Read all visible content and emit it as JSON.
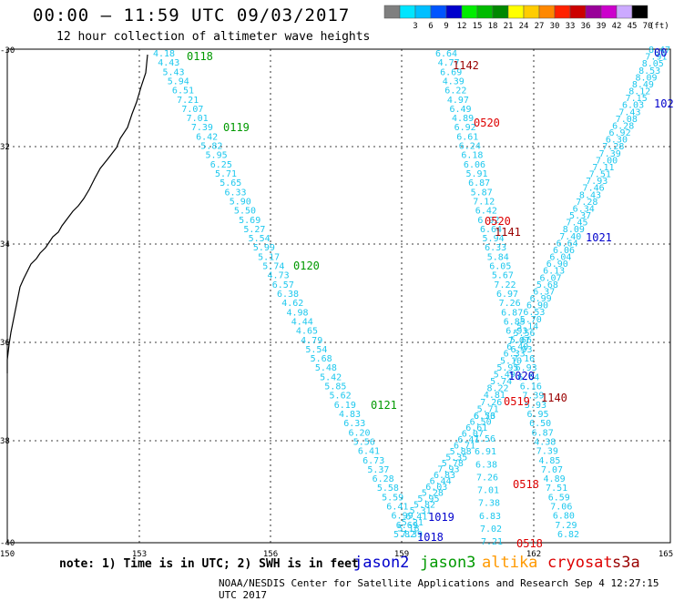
{
  "header": {
    "title": "00:00 – 11:59 UTC 09/03/2017",
    "subtitle": "12 hour collection of altimeter wave heights"
  },
  "legend": {
    "unit": "(ft)",
    "steps": [
      {
        "label": "",
        "color": "#7f7f7f"
      },
      {
        "label": "3",
        "color": "#00e5ff"
      },
      {
        "label": "6",
        "color": "#00bfff"
      },
      {
        "label": "9",
        "color": "#0055ff"
      },
      {
        "label": "12",
        "color": "#0000cc"
      },
      {
        "label": "15",
        "color": "#00ee00"
      },
      {
        "label": "18",
        "color": "#00bb00"
      },
      {
        "label": "21",
        "color": "#008800"
      },
      {
        "label": "24",
        "color": "#ffff00"
      },
      {
        "label": "27",
        "color": "#ffcc00"
      },
      {
        "label": "30",
        "color": "#ff8800"
      },
      {
        "label": "33",
        "color": "#ff2200"
      },
      {
        "label": "36",
        "color": "#cc0000"
      },
      {
        "label": "39",
        "color": "#990099"
      },
      {
        "label": "42",
        "color": "#cc00cc"
      },
      {
        "label": "45",
        "color": "#ccaaff"
      },
      {
        "label": "70",
        "color": "#000000"
      }
    ]
  },
  "axes": {
    "lat_labels": [
      "-30",
      "32",
      "34",
      "36",
      "38",
      "-40"
    ],
    "lon_labels": [
      "150",
      "153",
      "156",
      "159",
      "162",
      "165"
    ]
  },
  "tracks": [
    {
      "id": "0118",
      "sat": "jason3",
      "color": "#009900",
      "values": [
        "4.18",
        "4.43",
        "5.43",
        "5.94",
        "6.51",
        "7.21",
        "7.07",
        "7.01",
        "7.39",
        "6.42",
        "5.82",
        "5.95",
        "6.25",
        "5.71",
        "5.65",
        "6.33",
        "5.90",
        "5.50",
        "5.69",
        "5.27",
        "5.54",
        "5.99",
        "5.17",
        "5.74",
        "4.73",
        "6.57",
        "6.38",
        "4.62",
        "4.98",
        "4.44",
        "4.65",
        "4.79",
        "5.54",
        "5.68",
        "5.48",
        "5.42",
        "5.85",
        "5.62",
        "6.19",
        "4.83",
        "6.33",
        "6.20",
        "5.56",
        "6.41",
        "6.73",
        "5.37",
        "6.28",
        "5.58",
        "5.59",
        "6.41",
        "6.99",
        "6.69",
        "7.39"
      ]
    },
    {
      "id": "1142",
      "sat": "s3a",
      "color": "#990000",
      "values": [
        "6.64",
        "4.77",
        "6.69",
        "4.39",
        "6.22",
        "4.97",
        "6.49",
        "4.89",
        "6.92",
        "6.61",
        "6.24",
        "6.18",
        "6.06",
        "5.91",
        "6.87",
        "5.87",
        "7.12",
        "6.42",
        "6.92",
        "6.64",
        "5.94",
        "6.33",
        "5.84",
        "6.05",
        "5.67",
        "7.22",
        "6.97",
        "7.26",
        "6.87",
        "6.85",
        "6.93",
        "7.07",
        "6.93",
        "7.16",
        "6.93",
        "6.64",
        "6.16",
        "7.39",
        "5.93",
        "6.95",
        "6.50",
        "6.87",
        "4.38",
        "7.39",
        "4.85",
        "7.07",
        "4.89",
        "7.51",
        "6.59",
        "7.06",
        "6.80",
        "7.29",
        "6.82"
      ]
    },
    {
      "id": "1021",
      "sat": "jason2",
      "color": "#0000cc",
      "values": [
        "8.47",
        "7.91",
        "8.05",
        "8.53",
        "8.09",
        "8.49",
        "8.12",
        "7.15",
        "6.03",
        "7.43",
        "7.08",
        "6.28",
        "6.92",
        "6.30",
        "7.28",
        "7.39",
        "7.00",
        "7.11",
        "7.51",
        "7.93",
        "7.46",
        "8.43",
        "7.28",
        "6.34",
        "5.37",
        "7.45",
        "8.09",
        "7.40",
        "6.64",
        "6.06",
        "6.04",
        "6.90",
        "6.13",
        "6.07",
        "5.68",
        "6.37",
        "6.99",
        "6.90",
        "6.53",
        "5.70",
        "5.14",
        "5.56",
        "5.66",
        "6.40",
        "6.33",
        "5.10",
        "5.95",
        "5.49",
        "5.74",
        "8.22",
        "4.81",
        "7.26",
        "5.71",
        "6.76"
      ]
    },
    {
      "id": "1019",
      "sat": "jason2",
      "color": "#0000cc",
      "values": [
        "6.53",
        "6.50",
        "6.61",
        "6.07",
        "6.41",
        "6.71",
        "5.88",
        "5.35",
        "5.78",
        "7.93",
        "6.83",
        "6.44",
        "6.03",
        "5.28",
        "5.95",
        "5.82",
        "5.31",
        "6.41",
        "5.21",
        "5.18",
        "5.82"
      ]
    },
    {
      "id": "0520",
      "sat": "cryosat",
      "color": "#dd0000",
      "values": [
        "7.56",
        "6.91",
        "6.38",
        "7.26",
        "7.01",
        "7.38",
        "6.83",
        "7.02",
        "7.21"
      ]
    }
  ],
  "track_labels": [
    {
      "text": "0118",
      "color": "#009900"
    },
    {
      "text": "0119",
      "color": "#009900"
    },
    {
      "text": "0120",
      "color": "#009900"
    },
    {
      "text": "0121",
      "color": "#009900"
    },
    {
      "text": "1142",
      "color": "#990000"
    },
    {
      "text": "0520",
      "color": "#dd0000"
    },
    {
      "text": "0520",
      "color": "#dd0000"
    },
    {
      "text": "1141",
      "color": "#990000"
    },
    {
      "text": "1021",
      "color": "#0000cc"
    },
    {
      "text": "1020",
      "color": "#0000cc"
    },
    {
      "text": "0519",
      "color": "#dd0000"
    },
    {
      "text": "1140",
      "color": "#990000"
    },
    {
      "text": "0518",
      "color": "#dd0000"
    },
    {
      "text": "0518",
      "color": "#dd0000"
    },
    {
      "text": "1019",
      "color": "#0000cc"
    },
    {
      "text": "1018",
      "color": "#0000cc"
    },
    {
      "text": "00",
      "color": "#0000cc"
    },
    {
      "text": "102",
      "color": "#0000cc"
    }
  ],
  "footer": {
    "note": "note: 1) Time is in UTC; 2) SWH is in feet",
    "satellites": [
      {
        "name": "jason2",
        "color": "#0000cc"
      },
      {
        "name": "jason3",
        "color": "#009900"
      },
      {
        "name": "altika",
        "color": "#ff9900"
      },
      {
        "name": "cryosat",
        "color": "#dd0000"
      },
      {
        "name": "s3a",
        "color": "#990000"
      }
    ],
    "credit": "NOAA/NESDIS Center for Satellite Applications and Research   Sep  4 12:27:15 UTC 2017"
  }
}
